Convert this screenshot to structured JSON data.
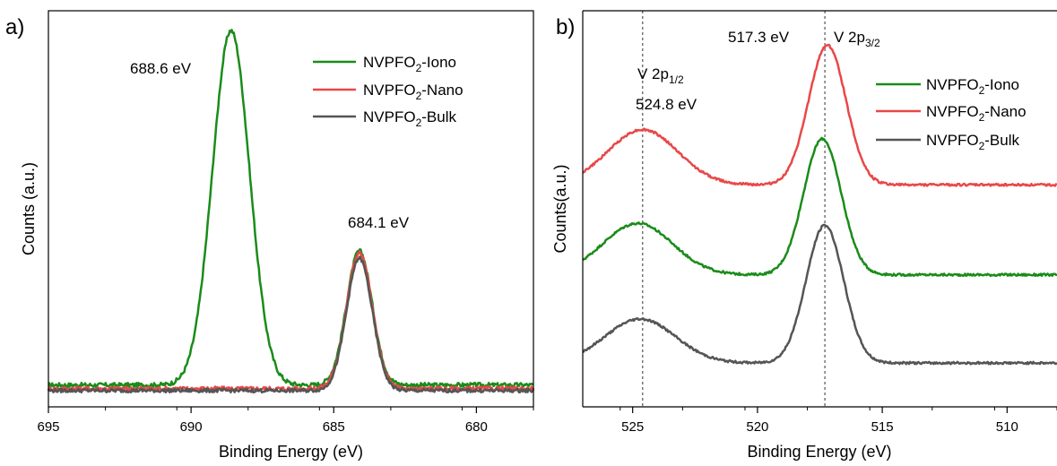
{
  "chart_data": [
    {
      "type": "line",
      "panel_label": "a)",
      "xlabel": "Binding Energy (eV)",
      "ylabel": "Counts (a.u.)",
      "xlim": [
        695,
        678
      ],
      "x_reversed": true,
      "xticks": [
        695,
        690,
        685,
        680
      ],
      "xtick_labels": [
        "695",
        "690",
        "685",
        "680"
      ],
      "y_ticks_shown": false,
      "legend_position": "top-right",
      "legend": [
        {
          "name_main": "NVPFO",
          "name_sub": "2",
          "name_suffix": "-Iono"
        },
        {
          "name_main": "NVPFO",
          "name_sub": "2",
          "name_suffix": "-Nano"
        },
        {
          "name_main": "NVPFO",
          "name_sub": "2",
          "name_suffix": "-Bulk"
        }
      ],
      "series": [
        {
          "color": "#1a8c1a",
          "baseline": 0.035,
          "noise": 0.006,
          "peaks": [
            {
              "center": 688.6,
              "height": 0.965,
              "width": 0.65
            },
            {
              "center": 684.1,
              "height": 0.365,
              "width": 0.45
            }
          ]
        },
        {
          "color": "#e84848",
          "baseline": 0.025,
          "noise": 0.006,
          "peaks": [
            {
              "center": 684.1,
              "height": 0.37,
              "width": 0.45
            }
          ]
        },
        {
          "color": "#555555",
          "baseline": 0.02,
          "noise": 0.005,
          "peaks": [
            {
              "center": 684.1,
              "height": 0.36,
              "width": 0.45
            }
          ]
        }
      ],
      "annotations": [
        {
          "text": "688.6 eV",
          "x": 688.6,
          "y": 1.0
        },
        {
          "text": "684.1 eV",
          "x": 684.1,
          "y": 0.48
        }
      ]
    },
    {
      "type": "line",
      "panel_label": "b)",
      "xlabel": "Binding Energy (eV)",
      "ylabel": "Counts(a.u.)",
      "xlim": [
        527,
        508
      ],
      "x_reversed": true,
      "xticks": [
        525,
        520,
        515,
        510
      ],
      "xtick_labels": [
        "525",
        "520",
        "515",
        "510"
      ],
      "y_ticks_shown": false,
      "legend_position": "top-right",
      "legend": [
        {
          "name_main": "NVPFO",
          "name_sub": "2",
          "name_suffix": "-Iono"
        },
        {
          "name_main": "NVPFO",
          "name_sub": "2",
          "name_suffix": "-Nano"
        },
        {
          "name_main": "NVPFO",
          "name_sub": "2",
          "name_suffix": "-Bulk"
        }
      ],
      "series": [
        {
          "color": "#1a8c1a",
          "baseline": 0.335,
          "noise": 0.003,
          "peaks": [
            {
              "center": 524.8,
              "height": 0.14,
              "width": 1.4
            },
            {
              "center": 517.4,
              "height": 0.37,
              "width": 0.75
            }
          ]
        },
        {
          "color": "#e84848",
          "baseline": 0.58,
          "noise": 0.003,
          "peaks": [
            {
              "center": 524.6,
              "height": 0.15,
              "width": 1.4
            },
            {
              "center": 517.2,
              "height": 0.38,
              "width": 0.75
            }
          ]
        },
        {
          "color": "#555555",
          "baseline": 0.095,
          "noise": 0.003,
          "peaks": [
            {
              "center": 524.7,
              "height": 0.12,
              "width": 1.4
            },
            {
              "center": 517.3,
              "height": 0.375,
              "width": 0.75
            }
          ]
        }
      ],
      "reference_lines": [
        524.6,
        517.3
      ],
      "annotations": [
        {
          "text": "V 2p",
          "sub": "1/2",
          "x": 524.6,
          "y": 0.87
        },
        {
          "text": "524.8 eV",
          "x": 524.6,
          "y": 0.795
        },
        {
          "text": "517.3 eV",
          "x": 517.3,
          "y": 0.98
        },
        {
          "text": "V 2p",
          "sub": "3/2",
          "x": 517.3,
          "y": 0.98
        }
      ]
    }
  ]
}
